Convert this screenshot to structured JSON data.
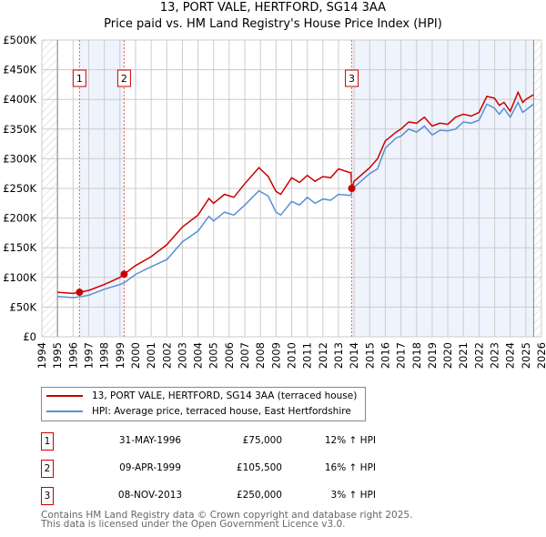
{
  "chart_data": {
    "type": "line",
    "title": "13, PORT VALE, HERTFORD, SG14 3AA",
    "subtitle": "Price paid vs. HM Land Registry's House Price Index (HPI)",
    "xlim": [
      1994,
      2026
    ],
    "ylim": [
      0,
      500000
    ],
    "x_ticks": [
      "1994",
      "1995",
      "1996",
      "1997",
      "1998",
      "1999",
      "2000",
      "2001",
      "2002",
      "2003",
      "2004",
      "2005",
      "2006",
      "2007",
      "2008",
      "2009",
      "2010",
      "2011",
      "2012",
      "2013",
      "2014",
      "2015",
      "2016",
      "2017",
      "2018",
      "2019",
      "2020",
      "2021",
      "2022",
      "2023",
      "2024",
      "2025",
      "2026"
    ],
    "y_ticks": [
      {
        "v": 0,
        "label": "£0"
      },
      {
        "v": 50000,
        "label": "£50K"
      },
      {
        "v": 100000,
        "label": "£100K"
      },
      {
        "v": 150000,
        "label": "£150K"
      },
      {
        "v": 200000,
        "label": "£200K"
      },
      {
        "v": 250000,
        "label": "£250K"
      },
      {
        "v": 300000,
        "label": "£300K"
      },
      {
        "v": 350000,
        "label": "£350K"
      },
      {
        "v": 400000,
        "label": "£400K"
      },
      {
        "v": 450000,
        "label": "£450K"
      },
      {
        "v": 500000,
        "label": "£500K"
      }
    ],
    "grid": true,
    "data_start": 1995.0,
    "data_end": 2025.5,
    "series": [
      {
        "name": "13, PORT VALE, HERTFORD, SG14 3AA (terraced house)",
        "color": "#cc0000",
        "x": [
          1995,
          1996,
          1996.41,
          1997,
          1998,
          1999,
          1999.27,
          2000,
          2001,
          2002,
          2003,
          2004,
          2004.7,
          2005,
          2005.7,
          2006.3,
          2007,
          2007.9,
          2008.5,
          2009,
          2009.3,
          2010,
          2010.5,
          2011,
          2011.5,
          2012,
          2012.5,
          2013,
          2013.8,
          2013.85,
          2014,
          2015,
          2015.5,
          2016,
          2016.7,
          2017,
          2017.5,
          2018,
          2018.5,
          2019,
          2019.5,
          2020,
          2020.5,
          2021,
          2021.5,
          2022,
          2022.5,
          2023,
          2023.3,
          2023.6,
          2024,
          2024.5,
          2024.8,
          2025,
          2025.5
        ],
        "values": [
          75000,
          73000,
          75000,
          78000,
          88000,
          100000,
          105500,
          120000,
          135000,
          155000,
          185000,
          205000,
          233000,
          225000,
          240000,
          235000,
          258000,
          285000,
          270000,
          245000,
          240000,
          268000,
          260000,
          272000,
          262000,
          270000,
          268000,
          283000,
          276000,
          250000,
          262000,
          285000,
          300000,
          330000,
          345000,
          350000,
          362000,
          360000,
          370000,
          355000,
          360000,
          358000,
          370000,
          375000,
          372000,
          378000,
          405000,
          402000,
          390000,
          395000,
          380000,
          412000,
          395000,
          400000,
          408000
        ]
      },
      {
        "name": "HPI: Average price, terraced house, East Hertfordshire",
        "color": "#5b8fd4",
        "x": [
          1995,
          1996,
          1996.41,
          1997,
          1998,
          1999,
          1999.27,
          2000,
          2001,
          2002,
          2003,
          2004,
          2004.7,
          2005,
          2005.7,
          2006.3,
          2007,
          2007.9,
          2008.5,
          2009,
          2009.3,
          2010,
          2010.5,
          2011,
          2011.5,
          2012,
          2012.5,
          2013,
          2013.8,
          2013.85,
          2014,
          2015,
          2015.5,
          2016,
          2016.7,
          2017,
          2017.5,
          2018,
          2018.5,
          2019,
          2019.5,
          2020,
          2020.5,
          2021,
          2021.5,
          2022,
          2022.5,
          2023,
          2023.3,
          2023.6,
          2024,
          2024.5,
          2024.8,
          2025,
          2025.5
        ],
        "values": [
          68000,
          66000,
          67000,
          70000,
          80000,
          88000,
          91000,
          105000,
          118000,
          130000,
          160000,
          178000,
          203000,
          195000,
          210000,
          205000,
          222000,
          246000,
          237000,
          210000,
          205000,
          228000,
          222000,
          235000,
          225000,
          232000,
          230000,
          240000,
          238000,
          245000,
          252000,
          275000,
          283000,
          318000,
          335000,
          338000,
          350000,
          345000,
          355000,
          340000,
          348000,
          347000,
          350000,
          362000,
          360000,
          365000,
          392000,
          385000,
          375000,
          385000,
          370000,
          395000,
          378000,
          382000,
          392000
        ]
      }
    ],
    "sales": [
      {
        "n": "1",
        "x": 1996.41,
        "value": 75000
      },
      {
        "n": "2",
        "x": 1999.27,
        "value": 105500
      },
      {
        "n": "3",
        "x": 2013.85,
        "value": 250000
      }
    ],
    "shaded_ranges": [
      [
        1996.41,
        1999.27
      ],
      [
        2013.85,
        2025.5
      ]
    ]
  },
  "legend": {
    "property": "13, PORT VALE, HERTFORD, SG14 3AA (terraced house)",
    "hpi": "HPI: Average price, terraced house, East Hertfordshire"
  },
  "transactions": [
    {
      "n": "1",
      "date": "31-MAY-1996",
      "price": "£75,000",
      "hpi": "12% ↑ HPI"
    },
    {
      "n": "2",
      "date": "09-APR-1999",
      "price": "£105,500",
      "hpi": "16% ↑ HPI"
    },
    {
      "n": "3",
      "date": "08-NOV-2013",
      "price": "£250,000",
      "hpi": "3% ↑ HPI"
    }
  ],
  "footer": {
    "line1": "Contains HM Land Registry data © Crown copyright and database right 2025.",
    "line2": "This data is licensed under the Open Government Licence v3.0."
  },
  "colors": {
    "property": "#cc0000",
    "hpi": "#5b8fd4",
    "shade": "#eef3fc"
  }
}
